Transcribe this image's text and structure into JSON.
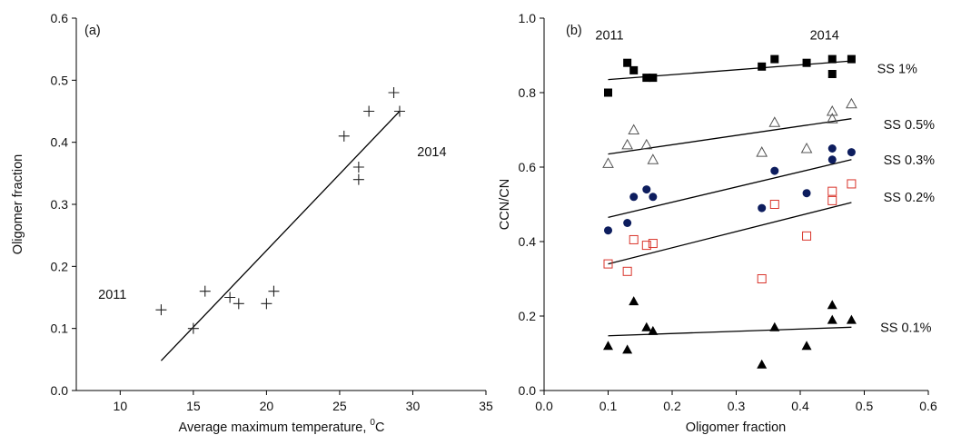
{
  "chart_data": [
    {
      "panel_label": "(a)",
      "type": "scatter",
      "xlabel": "Average maximum temperature, ",
      "xlabel_unit_sup": "0",
      "xlabel_unit": "C",
      "ylabel": "Oligomer fraction",
      "xlim": [
        7,
        35
      ],
      "ylim": [
        0,
        0.6
      ],
      "x_ticks": [
        "10",
        "15",
        "20",
        "25",
        "30",
        "35"
      ],
      "y_ticks": [
        "0.0",
        "0.1",
        "0.2",
        "0.3",
        "0.4",
        "0.5",
        "0.6"
      ],
      "x_tick_values": [
        10,
        15,
        20,
        25,
        30,
        35
      ],
      "y_tick_values": [
        0,
        0.1,
        0.2,
        0.3,
        0.4,
        0.5,
        0.6
      ],
      "marker": "plus",
      "points": [
        {
          "x": 12.8,
          "y": 0.13
        },
        {
          "x": 15.0,
          "y": 0.1
        },
        {
          "x": 15.8,
          "y": 0.16
        },
        {
          "x": 17.5,
          "y": 0.15
        },
        {
          "x": 18.1,
          "y": 0.14
        },
        {
          "x": 20.0,
          "y": 0.14
        },
        {
          "x": 20.5,
          "y": 0.16
        },
        {
          "x": 25.3,
          "y": 0.41
        },
        {
          "x": 26.3,
          "y": 0.36
        },
        {
          "x": 26.3,
          "y": 0.34
        },
        {
          "x": 27.0,
          "y": 0.45
        },
        {
          "x": 28.7,
          "y": 0.48
        },
        {
          "x": 29.1,
          "y": 0.45
        }
      ],
      "fit_line": {
        "x": [
          12.8,
          29.1
        ],
        "y": [
          0.048,
          0.45
        ]
      },
      "annotations": [
        {
          "text": "2011",
          "x": 8.5,
          "y": 0.155
        },
        {
          "text": "2014",
          "x": 30.3,
          "y": 0.385
        }
      ]
    },
    {
      "panel_label": "(b)",
      "type": "scatter",
      "xlabel": "Oligomer fraction",
      "ylabel": "CCN/CN",
      "xlim": [
        0,
        0.6
      ],
      "ylim": [
        0,
        1.0
      ],
      "x_ticks": [
        "0.0",
        "0.1",
        "0.2",
        "0.3",
        "0.4",
        "0.5",
        "0.6"
      ],
      "y_ticks": [
        "0.0",
        "0.2",
        "0.4",
        "0.6",
        "0.8",
        "1.0"
      ],
      "x_tick_values": [
        0,
        0.1,
        0.2,
        0.3,
        0.4,
        0.5,
        0.6
      ],
      "y_tick_values": [
        0,
        0.2,
        0.4,
        0.6,
        0.8,
        1.0
      ],
      "series": [
        {
          "name": "SS 1%",
          "marker": "square-filled",
          "color": "#000000",
          "points": [
            [
              0.1,
              0.8
            ],
            [
              0.13,
              0.88
            ],
            [
              0.14,
              0.86
            ],
            [
              0.16,
              0.84
            ],
            [
              0.17,
              0.84
            ],
            [
              0.34,
              0.87
            ],
            [
              0.36,
              0.89
            ],
            [
              0.41,
              0.88
            ],
            [
              0.45,
              0.89
            ],
            [
              0.45,
              0.85
            ],
            [
              0.48,
              0.89
            ]
          ],
          "fit": [
            [
              0.1,
              0.835
            ],
            [
              0.48,
              0.885
            ]
          ],
          "label_at": [
            0.52,
            0.865
          ]
        },
        {
          "name": "SS 0.5%",
          "marker": "triangle-open",
          "color": "#555555",
          "points": [
            [
              0.1,
              0.61
            ],
            [
              0.13,
              0.66
            ],
            [
              0.14,
              0.7
            ],
            [
              0.16,
              0.66
            ],
            [
              0.17,
              0.62
            ],
            [
              0.34,
              0.64
            ],
            [
              0.36,
              0.72
            ],
            [
              0.41,
              0.65
            ],
            [
              0.45,
              0.75
            ],
            [
              0.45,
              0.73
            ],
            [
              0.48,
              0.77
            ]
          ],
          "fit": [
            [
              0.1,
              0.635
            ],
            [
              0.48,
              0.73
            ]
          ],
          "label_at": [
            0.53,
            0.715
          ]
        },
        {
          "name": "SS 0.3%",
          "marker": "circle-filled",
          "color": "#0d1d5e",
          "points": [
            [
              0.1,
              0.43
            ],
            [
              0.13,
              0.45
            ],
            [
              0.14,
              0.52
            ],
            [
              0.16,
              0.54
            ],
            [
              0.17,
              0.52
            ],
            [
              0.34,
              0.49
            ],
            [
              0.36,
              0.59
            ],
            [
              0.41,
              0.53
            ],
            [
              0.45,
              0.65
            ],
            [
              0.45,
              0.62
            ],
            [
              0.48,
              0.64
            ]
          ],
          "fit": [
            [
              0.1,
              0.465
            ],
            [
              0.48,
              0.62
            ]
          ],
          "label_at": [
            0.53,
            0.62
          ]
        },
        {
          "name": "SS 0.2%",
          "marker": "square-open",
          "color": "#d9342b",
          "points": [
            [
              0.1,
              0.34
            ],
            [
              0.13,
              0.32
            ],
            [
              0.14,
              0.405
            ],
            [
              0.16,
              0.39
            ],
            [
              0.17,
              0.395
            ],
            [
              0.34,
              0.3
            ],
            [
              0.36,
              0.5
            ],
            [
              0.41,
              0.415
            ],
            [
              0.45,
              0.535
            ],
            [
              0.45,
              0.51
            ],
            [
              0.48,
              0.555
            ]
          ],
          "fit": [
            [
              0.1,
              0.34
            ],
            [
              0.48,
              0.505
            ]
          ],
          "label_at": [
            0.53,
            0.52
          ]
        },
        {
          "name": "SS 0.1%",
          "marker": "triangle-filled",
          "color": "#000000",
          "points": [
            [
              0.1,
              0.12
            ],
            [
              0.13,
              0.11
            ],
            [
              0.14,
              0.24
            ],
            [
              0.16,
              0.17
            ],
            [
              0.17,
              0.16
            ],
            [
              0.34,
              0.07
            ],
            [
              0.36,
              0.17
            ],
            [
              0.41,
              0.12
            ],
            [
              0.45,
              0.23
            ],
            [
              0.45,
              0.19
            ],
            [
              0.48,
              0.19
            ]
          ],
          "fit": [
            [
              0.1,
              0.147
            ],
            [
              0.48,
              0.17
            ]
          ],
          "label_at": [
            0.525,
            0.17
          ]
        }
      ],
      "annotations": [
        {
          "text": "2011",
          "x": 0.08,
          "y": 0.955
        },
        {
          "text": "2014",
          "x": 0.415,
          "y": 0.955
        }
      ]
    }
  ]
}
